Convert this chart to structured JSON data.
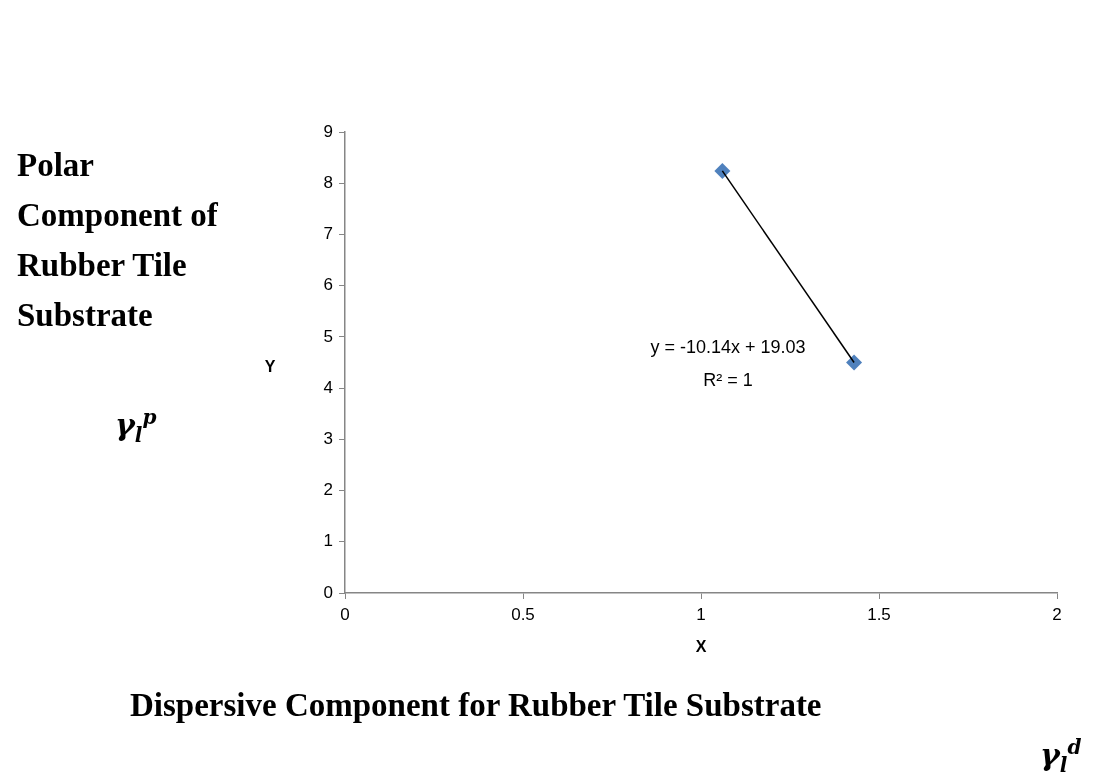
{
  "chart_data": {
    "type": "scatter",
    "xlabel": "X",
    "ylabel": "Y",
    "x": [
      1.06,
      1.43
    ],
    "xlim": [
      0,
      2
    ],
    "xticks": [
      0,
      0.5,
      1,
      1.5,
      2
    ],
    "ylim": [
      0,
      9
    ],
    "yticks": [
      0,
      1,
      2,
      3,
      4,
      5,
      6,
      7,
      8,
      9
    ],
    "grid": false,
    "legend": false,
    "series": [
      {
        "type": "scatter",
        "color": "#4f81bd",
        "marker": "diamond",
        "values": [
          8.24,
          4.5
        ]
      },
      {
        "type": "line",
        "color": "#000000",
        "marker": "none",
        "line_style": "solid",
        "values": [
          8.24,
          4.5
        ]
      }
    ],
    "annotations": [
      "Polar Component of Rubber Tile Substrate",
      "γ$_{l}$$^{p}$",
      "Dispersive Component for Rubber Tile Substrate",
      "γ$_{l}$$^{d}$",
      "y = -10.14x + 19.03",
      "R² = 1"
    ]
  }
}
